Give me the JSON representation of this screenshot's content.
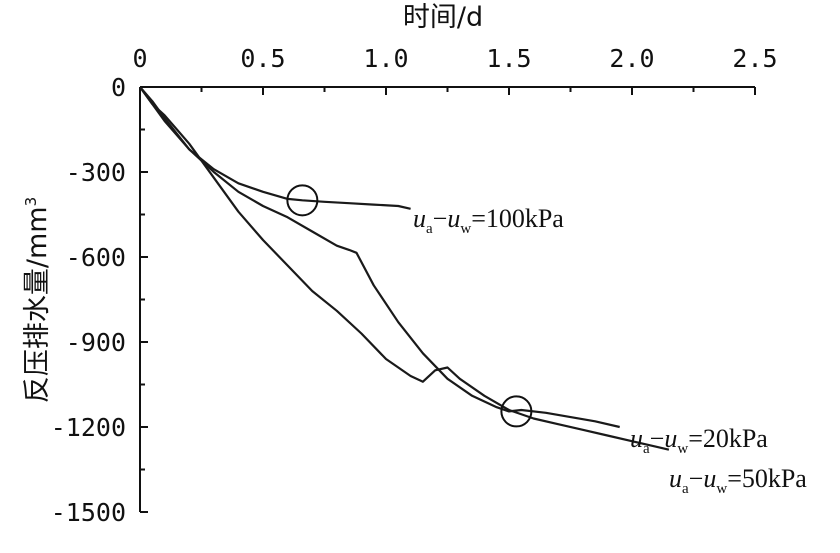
{
  "chart_data": {
    "type": "line",
    "xlabel": "时间/d",
    "ylabel": "反压排水量/mm",
    "ylabel_superscript": "3",
    "x_axis_position": "top",
    "xlim": [
      0,
      2.5
    ],
    "ylim": [
      -1500,
      0
    ],
    "x_ticks": [
      0,
      0.5,
      1.0,
      1.5,
      2.0,
      2.5
    ],
    "x_tick_labels": [
      "0",
      "0.5",
      "1.0",
      "1.5",
      "2.0",
      "2.5"
    ],
    "y_ticks": [
      0,
      -300,
      -600,
      -900,
      -1200,
      -1500
    ],
    "y_tick_labels": [
      "0",
      "-300",
      "-600",
      "-900",
      "-1200",
      "-1500"
    ],
    "grid": false,
    "series": [
      {
        "id": "s100",
        "name": "ua-uw=100kPa",
        "x": [
          0,
          0.05,
          0.1,
          0.2,
          0.3,
          0.4,
          0.5,
          0.6,
          0.66,
          0.75,
          0.85,
          0.95,
          1.05,
          1.1
        ],
        "y": [
          0,
          -60,
          -120,
          -220,
          -290,
          -340,
          -370,
          -395,
          -400,
          -405,
          -410,
          -415,
          -420,
          -430
        ]
      },
      {
        "id": "s20",
        "name": "ua-uw=20kPa",
        "x": [
          0,
          0.05,
          0.1,
          0.2,
          0.3,
          0.4,
          0.5,
          0.6,
          0.7,
          0.8,
          0.85,
          0.88,
          0.95,
          1.05,
          1.15,
          1.25,
          1.35,
          1.45,
          1.5,
          1.55,
          1.65,
          1.75,
          1.85,
          1.95
        ],
        "y": [
          0,
          -50,
          -110,
          -220,
          -300,
          -370,
          -420,
          -460,
          -510,
          -560,
          -575,
          -585,
          -700,
          -830,
          -940,
          -1030,
          -1090,
          -1130,
          -1145,
          -1140,
          -1150,
          -1165,
          -1180,
          -1200
        ]
      },
      {
        "id": "s50",
        "name": "ua-uw=50kPa",
        "x": [
          0,
          0.05,
          0.1,
          0.2,
          0.3,
          0.4,
          0.5,
          0.6,
          0.7,
          0.8,
          0.9,
          1.0,
          1.1,
          1.15,
          1.2,
          1.25,
          1.3,
          1.4,
          1.5,
          1.6,
          1.7,
          1.8,
          1.9,
          2.0,
          2.1,
          2.15
        ],
        "y": [
          0,
          -60,
          -100,
          -200,
          -320,
          -440,
          -540,
          -630,
          -720,
          -790,
          -870,
          -960,
          -1020,
          -1040,
          -1000,
          -990,
          -1030,
          -1090,
          -1140,
          -1170,
          -1190,
          -1210,
          -1230,
          -1250,
          -1270,
          -1280
        ]
      }
    ],
    "markers": [
      {
        "series": "s100",
        "x": 0.66,
        "y": -400
      },
      {
        "series": "s20",
        "x": 1.53,
        "y": -1145
      }
    ],
    "series_labels": [
      {
        "series": "s100",
        "main_a": "u",
        "sub_a": "a",
        "dash": "−",
        "main_w": "u",
        "sub_w": "w",
        "value": "=100kPa"
      },
      {
        "series": "s20",
        "main_a": "u",
        "sub_a": "a",
        "dash": "−",
        "main_w": "u",
        "sub_w": "w",
        "value": "=20kPa"
      },
      {
        "series": "s50",
        "main_a": "u",
        "sub_a": "a",
        "dash": "−",
        "main_w": "u",
        "sub_w": "w",
        "value": "=50kPa"
      }
    ]
  }
}
